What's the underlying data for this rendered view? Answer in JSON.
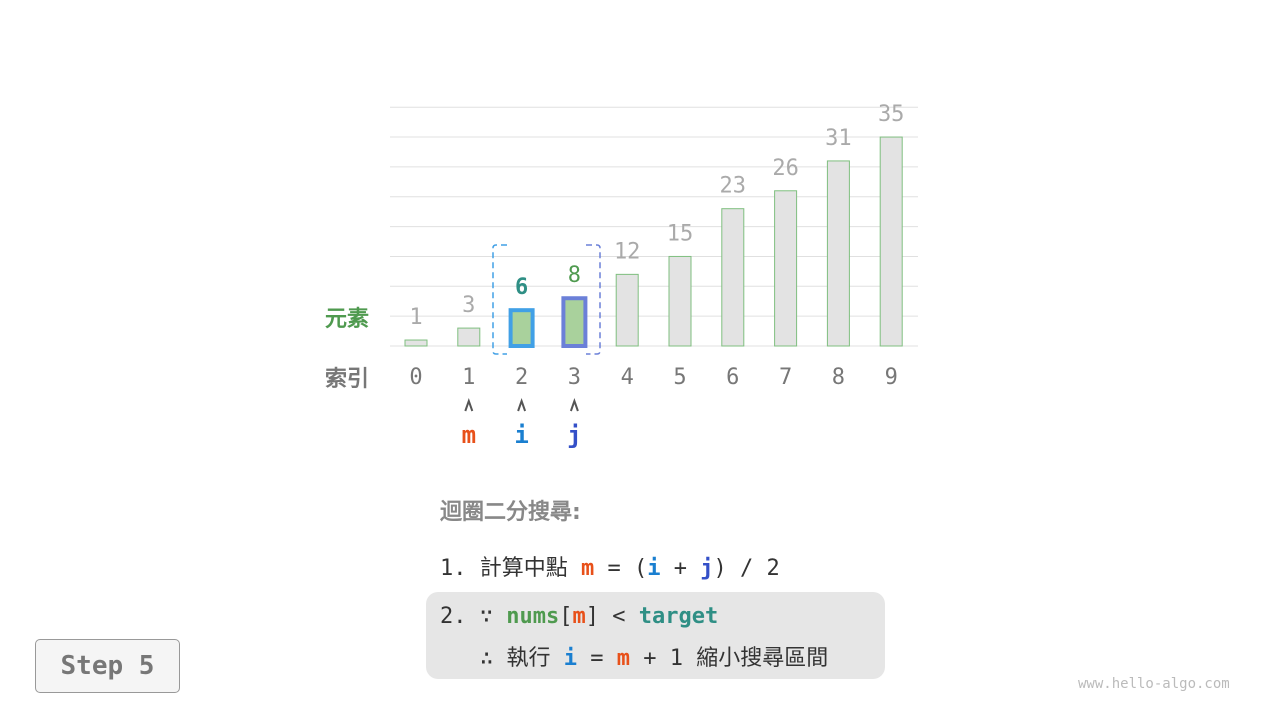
{
  "chart_data": {
    "type": "bar",
    "categories": [
      "0",
      "1",
      "2",
      "3",
      "4",
      "5",
      "6",
      "7",
      "8",
      "9"
    ],
    "values": [
      1,
      3,
      6,
      8,
      12,
      15,
      23,
      26,
      31,
      35
    ],
    "row_labels": {
      "value": "元素",
      "index": "索引"
    },
    "grid": true,
    "highlight": {
      "i": 2,
      "j": 3,
      "range": [
        2,
        3
      ]
    },
    "pointers": [
      {
        "name": "m",
        "index": 1
      },
      {
        "name": "i",
        "index": 2
      },
      {
        "name": "j",
        "index": 3
      }
    ],
    "colors": {
      "bar_fill": "#e3e3e3",
      "bar_edge": "#7fbf7f",
      "active_fill": "#a9d19c",
      "i": "#41a0e6",
      "j": "#6b80d8",
      "value_text": "#aaaaaa",
      "index_text": "#777777",
      "label_green": "#4f9a4f",
      "m": "#e8511a",
      "i_text": "#1a7fd0",
      "j_text": "#3450c8",
      "val_i": "#2f8f85",
      "val_j": "#4f9a4f"
    },
    "arrow_glyph": "^"
  },
  "explain": {
    "title": "迴圈二分搜尋:",
    "line1": {
      "num": "1.",
      "text": "計算中點",
      "m": "m",
      "eq": "=",
      "lp": "(",
      "i": "i",
      "plus": "+",
      "j": "j",
      "rp": ")",
      "div": "/ 2"
    },
    "line2": {
      "num": "2.",
      "because": "∵",
      "nums": "nums",
      "lb": "[",
      "m": "m",
      "rb": "]",
      "lt": "<",
      "target": "target"
    },
    "line3": {
      "therefore": "∴",
      "text": "執行",
      "i": "i",
      "eq": "=",
      "m": "m",
      "plus": "+ 1",
      "tail": "縮小搜尋區間"
    }
  },
  "step": {
    "label": "Step 5"
  },
  "watermark": "www.hello-algo.com"
}
